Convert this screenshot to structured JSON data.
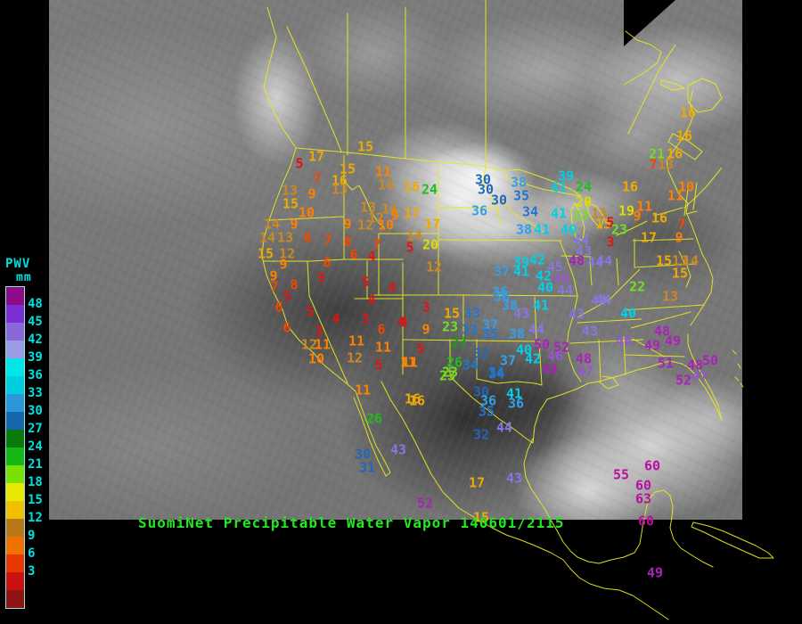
{
  "title": {
    "text": "SuomiNet Precipitable Water Vapor 140601/2115",
    "color": "#21e821"
  },
  "colorbar": {
    "heading": "PWV",
    "units": "mm",
    "label_color": "#00e0e0",
    "labels": [
      "48",
      "45",
      "42",
      "39",
      "36",
      "33",
      "30",
      "27",
      "24",
      "21",
      "18",
      "15",
      "12",
      "9",
      "6",
      "3"
    ],
    "blocks": [
      "#8e0a86",
      "#7b2fd2",
      "#8a68da",
      "#9c9ce4",
      "#00e6e6",
      "#00cede",
      "#2b97d8",
      "#1766ae",
      "#0a7a0a",
      "#16b816",
      "#7ae000",
      "#e8e800",
      "#f0c000",
      "#b87818",
      "#f07000",
      "#e83800",
      "#cc1010",
      "#8e1414"
    ]
  },
  "value_colors": [
    {
      "min": 0,
      "color": "#e01414"
    },
    {
      "min": 6,
      "color": "#f04800"
    },
    {
      "min": 9,
      "color": "#ff8000"
    },
    {
      "min": 12,
      "color": "#cc8822"
    },
    {
      "min": 15,
      "color": "#eeaa00"
    },
    {
      "min": 18,
      "color": "#dddd00"
    },
    {
      "min": 21,
      "color": "#77dd22"
    },
    {
      "min": 24,
      "color": "#22bb22"
    },
    {
      "min": 27,
      "color": "#11a011"
    },
    {
      "min": 30,
      "color": "#2266bb"
    },
    {
      "min": 33,
      "color": "#2277cc"
    },
    {
      "min": 36,
      "color": "#33a0e8"
    },
    {
      "min": 39,
      "color": "#00d0e8"
    },
    {
      "min": 43,
      "color": "#8877e0"
    },
    {
      "min": 46,
      "color": "#9955d5"
    },
    {
      "min": 48,
      "color": "#aa22bb"
    },
    {
      "min": 53,
      "color": "#bb0fa0"
    }
  ],
  "map_line_color": "#e8e81c",
  "stations": [
    [
      410,
      165,
      15
    ],
    [
      355,
      176,
      17
    ],
    [
      336,
      184,
      5
    ],
    [
      390,
      190,
      15
    ],
    [
      356,
      201,
      7
    ],
    [
      381,
      203,
      16
    ],
    [
      430,
      193,
      11
    ],
    [
      325,
      214,
      13
    ],
    [
      350,
      218,
      9
    ],
    [
      381,
      213,
      13
    ],
    [
      433,
      208,
      14
    ],
    [
      462,
      210,
      16
    ],
    [
      482,
      213,
      24
    ],
    [
      326,
      229,
      15
    ],
    [
      344,
      239,
      10
    ],
    [
      413,
      233,
      13
    ],
    [
      437,
      235,
      14
    ],
    [
      443,
      242,
      9
    ],
    [
      462,
      240,
      17
    ],
    [
      422,
      245,
      12
    ],
    [
      410,
      253,
      12
    ],
    [
      433,
      253,
      10
    ],
    [
      485,
      252,
      17
    ],
    [
      305,
      252,
      14
    ],
    [
      330,
      252,
      9
    ],
    [
      390,
      252,
      9
    ],
    [
      300,
      267,
      14
    ],
    [
      320,
      267,
      13
    ],
    [
      345,
      267,
      6
    ],
    [
      368,
      270,
      7
    ],
    [
      390,
      272,
      8
    ],
    [
      298,
      285,
      15
    ],
    [
      322,
      285,
      12
    ],
    [
      397,
      286,
      6
    ],
    [
      423,
      275,
      7
    ],
    [
      417,
      288,
      4
    ],
    [
      318,
      297,
      9
    ],
    [
      367,
      295,
      6
    ],
    [
      465,
      265,
      14
    ],
    [
      460,
      278,
      5
    ],
    [
      483,
      275,
      20
    ],
    [
      487,
      300,
      12
    ],
    [
      307,
      310,
      9
    ],
    [
      308,
      322,
      7
    ],
    [
      330,
      320,
      8
    ],
    [
      322,
      333,
      5
    ],
    [
      313,
      345,
      6
    ],
    [
      348,
      350,
      5
    ],
    [
      322,
      368,
      6
    ],
    [
      358,
      372,
      3
    ],
    [
      360,
      312,
      3
    ],
    [
      410,
      317,
      5
    ],
    [
      417,
      337,
      4
    ],
    [
      440,
      323,
      4
    ],
    [
      410,
      358,
      3
    ],
    [
      453,
      362,
      4
    ],
    [
      428,
      370,
      6
    ],
    [
      377,
      358,
      4
    ],
    [
      347,
      387,
      12
    ],
    [
      362,
      387,
      11
    ],
    [
      400,
      383,
      11
    ],
    [
      430,
      390,
      11
    ],
    [
      355,
      403,
      10
    ],
    [
      398,
      402,
      12
    ],
    [
      425,
      410,
      5
    ],
    [
      458,
      407,
      11
    ],
    [
      478,
      345,
      3
    ],
    [
      450,
      362,
      4
    ],
    [
      478,
      370,
      9
    ],
    [
      472,
      392,
      5
    ],
    [
      460,
      407,
      11
    ],
    [
      507,
      352,
      15
    ],
    [
      530,
      352,
      33
    ],
    [
      505,
      367,
      23
    ],
    [
      527,
      370,
      33
    ],
    [
      550,
      365,
      37
    ],
    [
      550,
      375,
      35
    ],
    [
      515,
      385,
      27
    ],
    [
      540,
      397,
      32
    ],
    [
      510,
      407,
      26
    ],
    [
      528,
      410,
      34
    ],
    [
      505,
      418,
      23
    ],
    [
      570,
      405,
      37
    ],
    [
      557,
      418,
      34
    ],
    [
      563,
      333,
      36
    ],
    [
      572,
      343,
      38
    ],
    [
      585,
      352,
      43
    ],
    [
      607,
      343,
      41
    ],
    [
      580,
      375,
      38
    ],
    [
      602,
      370,
      44
    ],
    [
      588,
      393,
      40
    ],
    [
      598,
      403,
      42
    ],
    [
      608,
      387,
      50
    ],
    [
      630,
      390,
      52
    ],
    [
      623,
      400,
      46
    ],
    [
      617,
      415,
      48
    ],
    [
      647,
      353,
      43
    ],
    [
      468,
      450,
      16
    ],
    [
      540,
      440,
      30
    ],
    [
      548,
      450,
      36
    ],
    [
      577,
      442,
      41
    ],
    [
      579,
      453,
      36
    ],
    [
      546,
      462,
      35
    ],
    [
      566,
      480,
      44
    ],
    [
      540,
      488,
      32
    ],
    [
      542,
      202,
      30
    ],
    [
      545,
      213,
      30
    ],
    [
      560,
      225,
      30
    ],
    [
      582,
      205,
      38
    ],
    [
      585,
      220,
      35
    ],
    [
      538,
      237,
      36
    ],
    [
      595,
      238,
      34
    ],
    [
      635,
      198,
      39
    ],
    [
      627,
      211,
      41
    ],
    [
      627,
      240,
      41
    ],
    [
      655,
      210,
      24
    ],
    [
      655,
      227,
      20
    ],
    [
      652,
      242,
      23
    ],
    [
      672,
      240,
      13
    ],
    [
      677,
      252,
      15
    ],
    [
      588,
      258,
      38
    ],
    [
      608,
      258,
      41
    ],
    [
      638,
      258,
      40
    ],
    [
      652,
      270,
      44
    ],
    [
      655,
      282,
      43
    ],
    [
      647,
      293,
      48
    ],
    [
      668,
      295,
      44
    ],
    [
      585,
      295,
      39
    ],
    [
      603,
      292,
      42
    ],
    [
      623,
      300,
      45
    ],
    [
      563,
      305,
      37
    ],
    [
      585,
      305,
      41
    ],
    [
      610,
      310,
      42
    ],
    [
      630,
      313,
      46
    ],
    [
      612,
      323,
      40
    ],
    [
      634,
      326,
      44
    ],
    [
      561,
      328,
      36
    ],
    [
      737,
      173,
      21
    ],
    [
      757,
      173,
      16
    ],
    [
      733,
      185,
      7
    ],
    [
      747,
      185,
      13
    ],
    [
      707,
      210,
      16
    ],
    [
      770,
      210,
      10
    ],
    [
      758,
      220,
      11
    ],
    [
      723,
      232,
      11
    ],
    [
      703,
      237,
      19
    ],
    [
      715,
      243,
      9
    ],
    [
      740,
      245,
      16
    ],
    [
      765,
      252,
      7
    ],
    [
      685,
      250,
      5
    ],
    [
      695,
      258,
      23
    ],
    [
      685,
      272,
      3
    ],
    [
      728,
      267,
      17
    ],
    [
      762,
      267,
      9
    ],
    [
      678,
      293,
      44
    ],
    [
      745,
      293,
      15
    ],
    [
      763,
      293,
      13
    ],
    [
      775,
      293,
      14
    ],
    [
      763,
      307,
      15
    ],
    [
      715,
      322,
      22
    ],
    [
      772,
      127,
      16
    ],
    [
      768,
      153,
      16
    ],
    [
      752,
      333,
      13
    ],
    [
      677,
      337,
      44
    ],
    [
      672,
      338,
      44
    ],
    [
      705,
      352,
      40
    ],
    [
      662,
      372,
      43
    ],
    [
      700,
      383,
      46
    ],
    [
      743,
      372,
      48
    ],
    [
      732,
      388,
      49
    ],
    [
      755,
      383,
      49
    ],
    [
      655,
      403,
      48
    ],
    [
      657,
      417,
      47
    ],
    [
      747,
      408,
      51
    ],
    [
      780,
      410,
      48
    ],
    [
      797,
      405,
      50
    ],
    [
      767,
      427,
      52
    ],
    [
      785,
      423,
      47
    ],
    [
      407,
      438,
      11
    ],
    [
      463,
      448,
      16
    ],
    [
      420,
      470,
      26
    ],
    [
      502,
      422,
      23
    ],
    [
      557,
      420,
      34
    ],
    [
      447,
      505,
      43
    ],
    [
      407,
      510,
      30
    ],
    [
      412,
      525,
      31
    ],
    [
      535,
      542,
      17
    ],
    [
      577,
      537,
      43
    ],
    [
      477,
      565,
      52
    ],
    [
      540,
      581,
      15
    ],
    [
      697,
      533,
      55
    ],
    [
      732,
      523,
      60
    ],
    [
      722,
      545,
      60
    ],
    [
      722,
      560,
      63
    ],
    [
      725,
      585,
      60
    ],
    [
      735,
      643,
      49
    ]
  ]
}
